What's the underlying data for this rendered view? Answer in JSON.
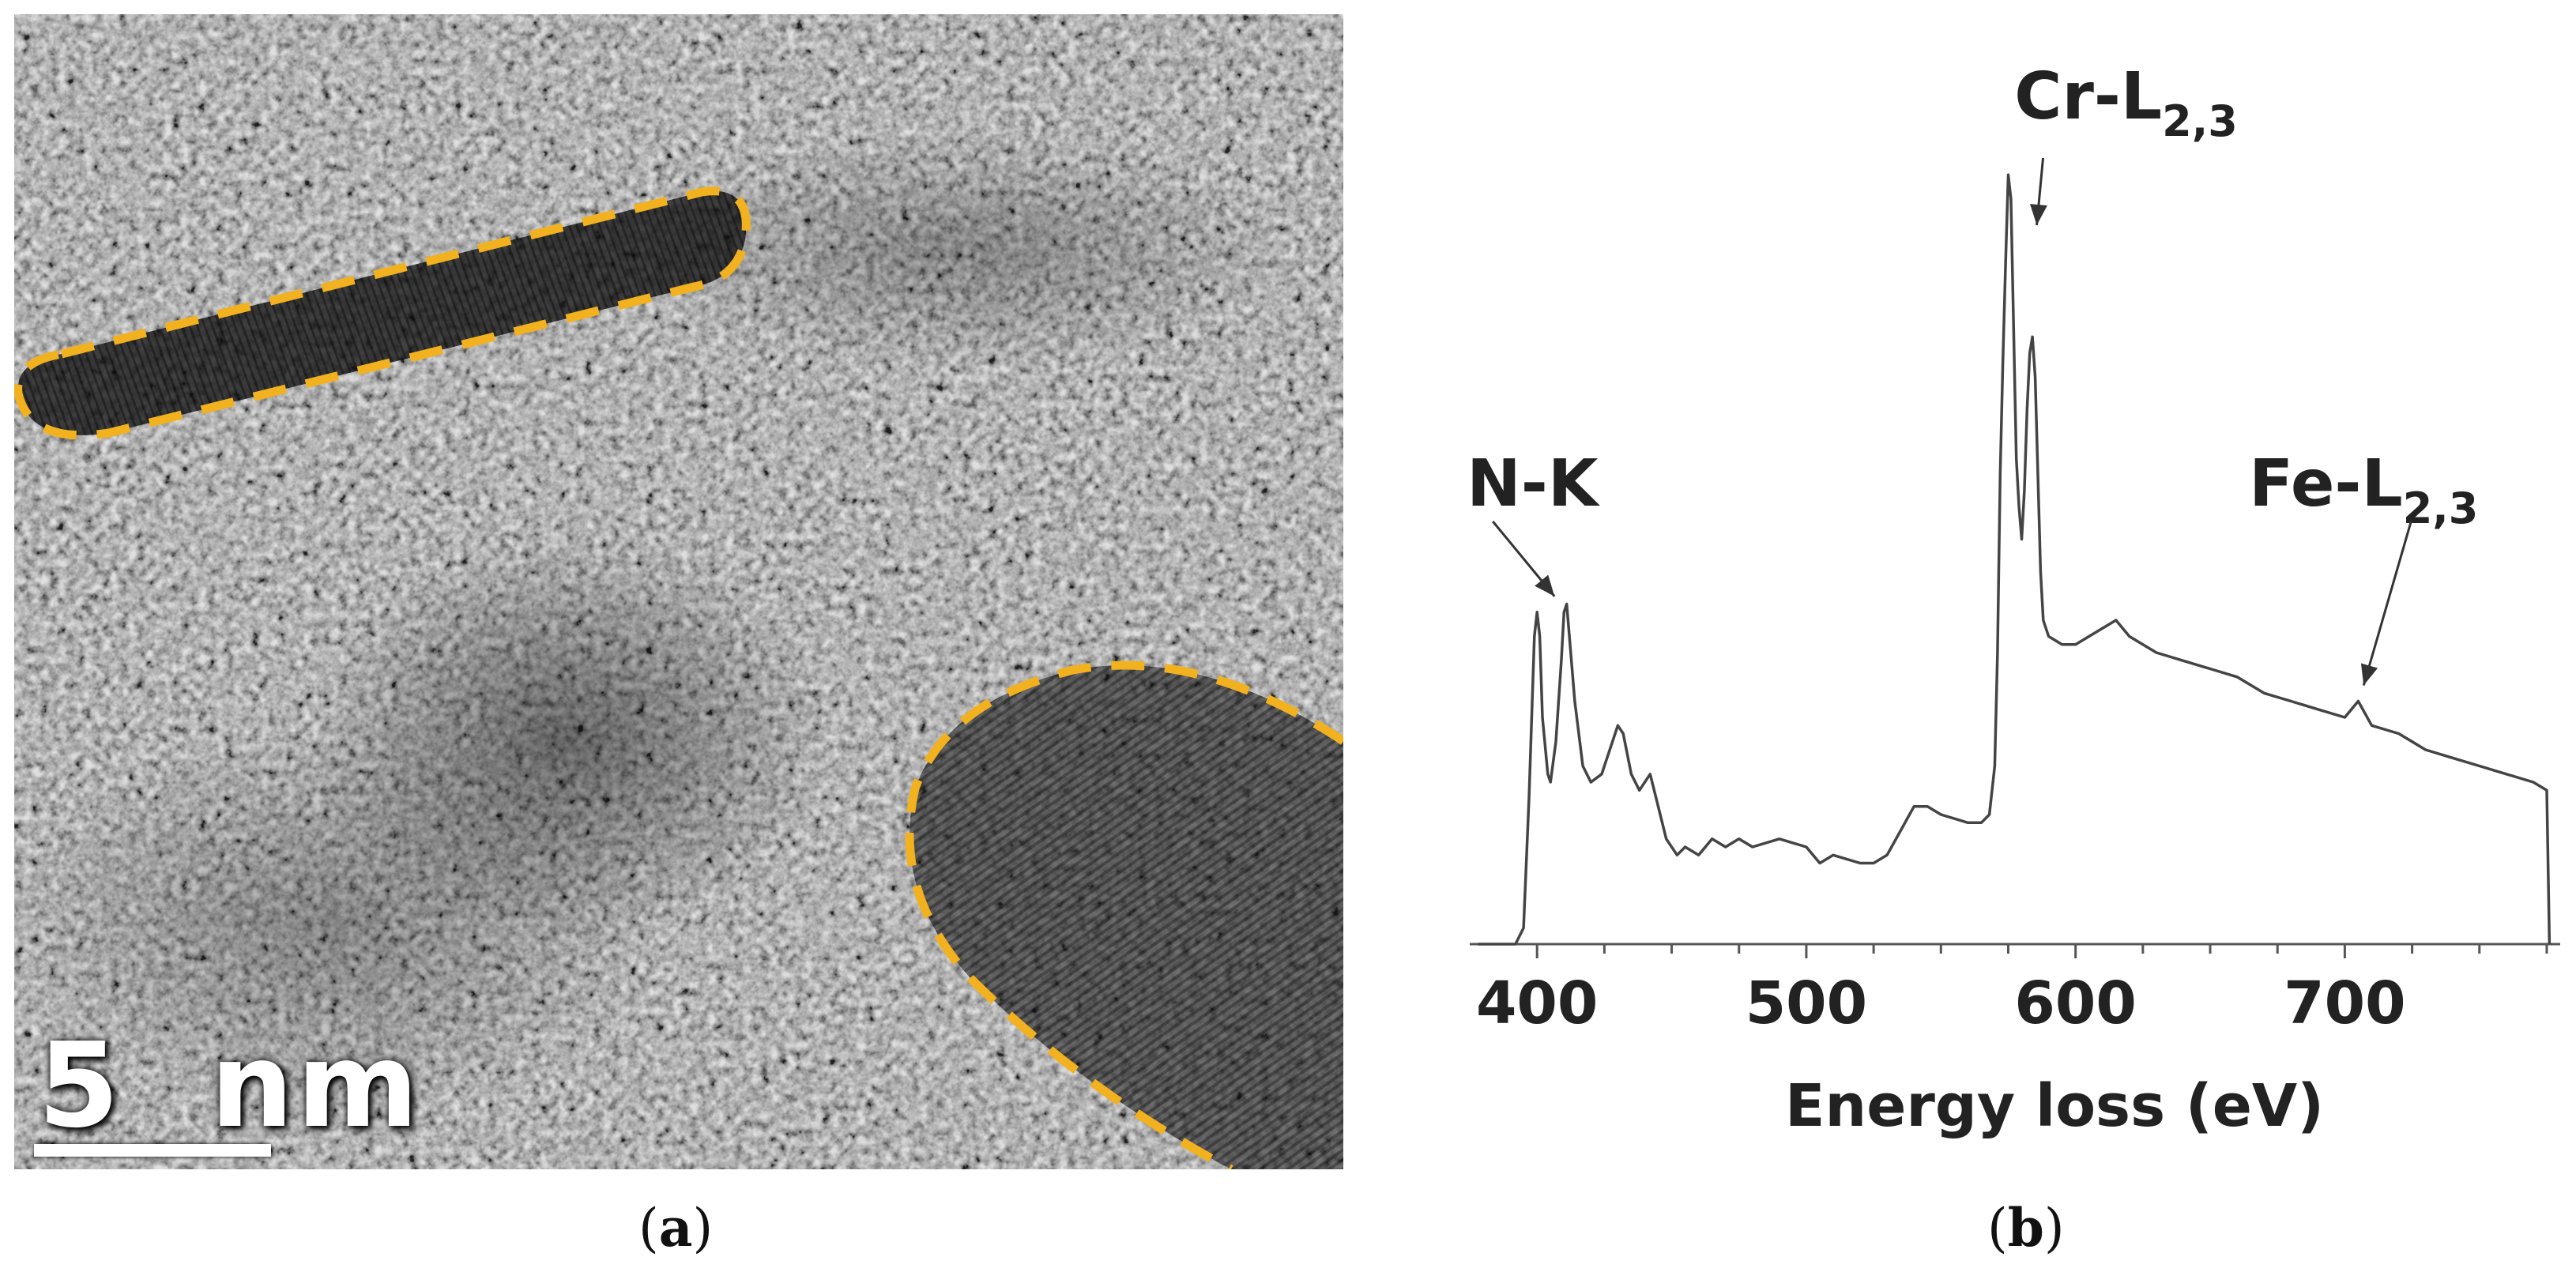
{
  "panel_a": {
    "caption": "a",
    "scale_bar_label": "5  nm",
    "outline_color": "#f2b11e"
  },
  "panel_b": {
    "caption": "b"
  },
  "chart_data": {
    "type": "line",
    "title": "",
    "xlabel": "Energy loss (eV)",
    "ylabel": "",
    "xlim": [
      375,
      780
    ],
    "x_ticks": [
      400,
      500,
      600,
      700
    ],
    "ylim": [
      0,
      100
    ],
    "grid": false,
    "series": [
      {
        "color": "#444444",
        "points": [
          [
            378,
            0
          ],
          [
            392,
            0
          ],
          [
            395,
            2
          ],
          [
            397,
            18
          ],
          [
            399,
            38
          ],
          [
            400,
            41
          ],
          [
            401,
            38
          ],
          [
            402,
            28
          ],
          [
            404,
            21
          ],
          [
            405,
            20
          ],
          [
            407,
            25
          ],
          [
            409,
            35
          ],
          [
            410,
            41
          ],
          [
            411,
            42
          ],
          [
            412,
            38
          ],
          [
            414,
            30
          ],
          [
            417,
            22
          ],
          [
            420,
            20
          ],
          [
            424,
            21
          ],
          [
            428,
            25
          ],
          [
            430,
            27
          ],
          [
            432,
            26
          ],
          [
            435,
            21
          ],
          [
            438,
            19
          ],
          [
            442,
            21
          ],
          [
            445,
            17
          ],
          [
            448,
            13
          ],
          [
            452,
            11
          ],
          [
            455,
            12
          ],
          [
            460,
            11
          ],
          [
            465,
            13
          ],
          [
            470,
            12
          ],
          [
            475,
            13
          ],
          [
            480,
            12
          ],
          [
            490,
            13
          ],
          [
            500,
            12
          ],
          [
            505,
            10
          ],
          [
            510,
            11
          ],
          [
            520,
            10
          ],
          [
            525,
            10
          ],
          [
            530,
            11
          ],
          [
            535,
            14
          ],
          [
            540,
            17
          ],
          [
            545,
            17
          ],
          [
            550,
            16
          ],
          [
            560,
            15
          ],
          [
            565,
            15
          ],
          [
            568,
            16
          ],
          [
            570,
            22
          ],
          [
            571,
            36
          ],
          [
            572,
            58
          ],
          [
            573,
            72
          ],
          [
            574,
            84
          ],
          [
            575,
            95
          ],
          [
            576,
            92
          ],
          [
            577,
            76
          ],
          [
            578,
            60
          ],
          [
            579,
            54
          ],
          [
            580,
            50
          ],
          [
            581,
            56
          ],
          [
            582,
            66
          ],
          [
            583,
            73
          ],
          [
            584,
            75
          ],
          [
            585,
            70
          ],
          [
            586,
            58
          ],
          [
            587,
            46
          ],
          [
            588,
            40
          ],
          [
            590,
            38
          ],
          [
            595,
            37
          ],
          [
            600,
            37
          ],
          [
            610,
            39
          ],
          [
            615,
            40
          ],
          [
            620,
            38
          ],
          [
            630,
            36
          ],
          [
            640,
            35
          ],
          [
            650,
            34
          ],
          [
            660,
            33
          ],
          [
            670,
            31
          ],
          [
            680,
            30
          ],
          [
            690,
            29
          ],
          [
            700,
            28
          ],
          [
            705,
            30
          ],
          [
            710,
            27
          ],
          [
            720,
            26
          ],
          [
            730,
            24
          ],
          [
            740,
            23
          ],
          [
            750,
            22
          ],
          [
            760,
            21
          ],
          [
            770,
            20
          ],
          [
            775,
            19
          ],
          [
            776,
            0
          ]
        ]
      }
    ],
    "annotations": [
      {
        "label": "N-K",
        "base": "N-K",
        "sub": "",
        "x": 410
      },
      {
        "label": "Cr-L2,3",
        "base": "Cr-L",
        "sub": "2,3",
        "x": 585
      },
      {
        "label": "Fe-L2,3",
        "base": "Fe-L",
        "sub": "2,3",
        "x": 707
      }
    ]
  }
}
